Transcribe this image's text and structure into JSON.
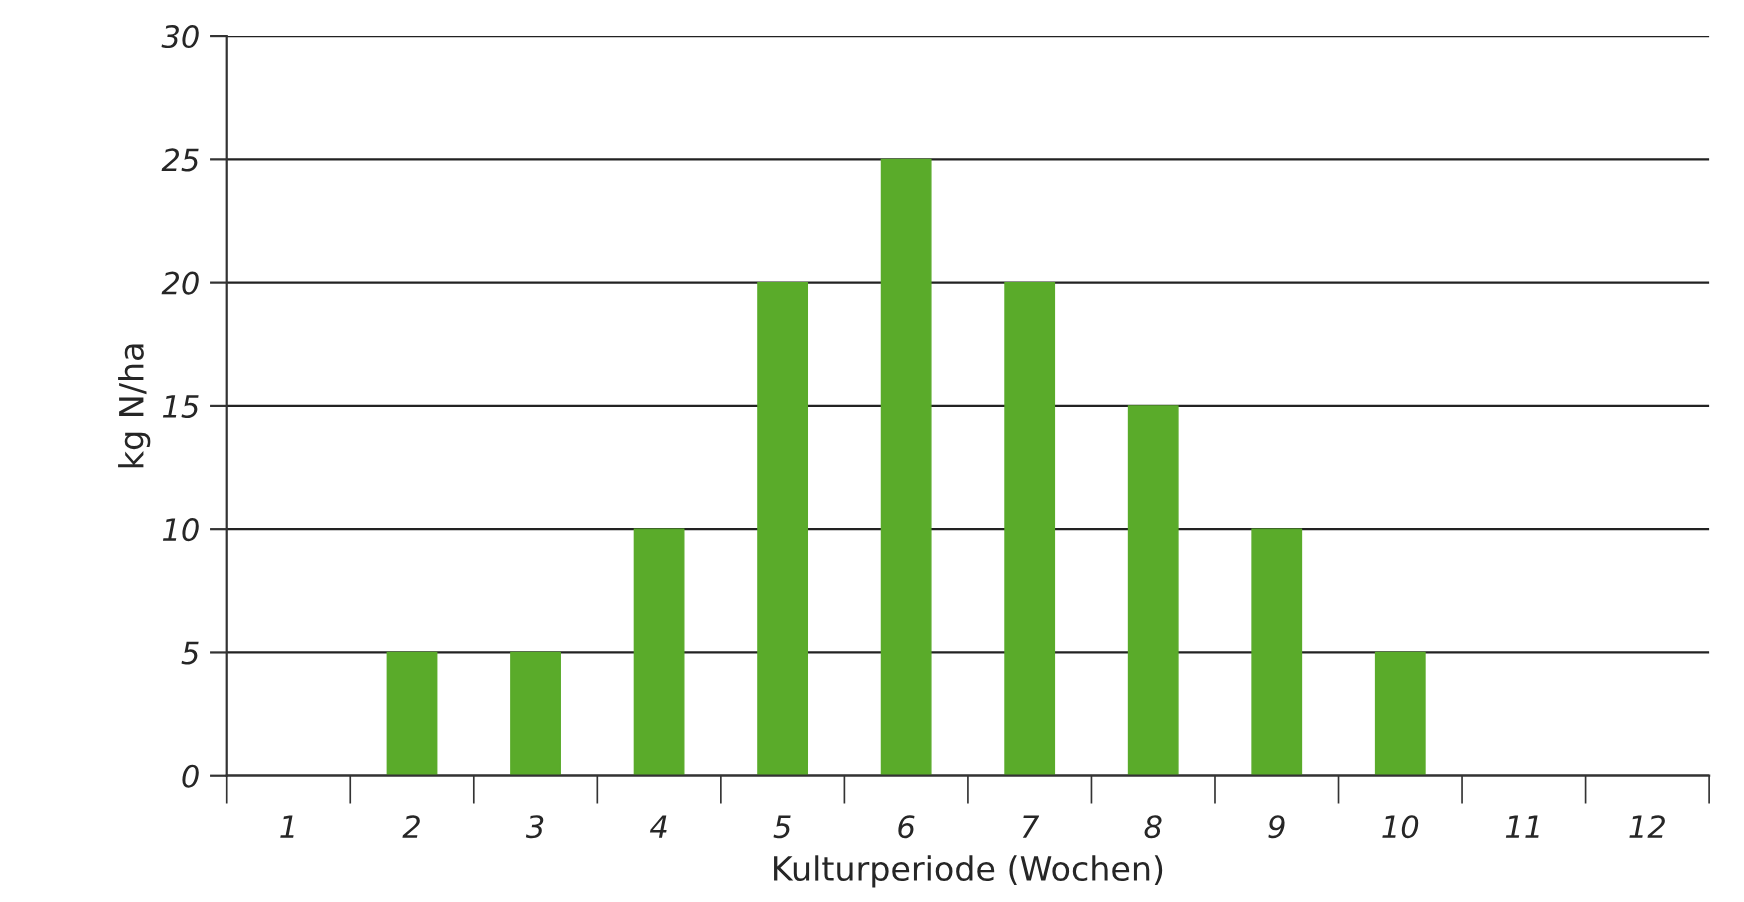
{
  "chart_data": {
    "type": "bar",
    "xlabel": "Kulturperiode (Wochen)",
    "ylabel": "kg N/ha",
    "categories": [
      "1",
      "2",
      "3",
      "4",
      "5",
      "6",
      "7",
      "8",
      "9",
      "10",
      "11",
      "12"
    ],
    "values": [
      0,
      5,
      5,
      10,
      20,
      25,
      20,
      15,
      10,
      5,
      0,
      0
    ],
    "color": "#5aab2a",
    "ylim": [
      0,
      30
    ],
    "yticks": [
      0,
      5,
      10,
      15,
      20,
      25,
      30
    ],
    "grid": "y"
  }
}
